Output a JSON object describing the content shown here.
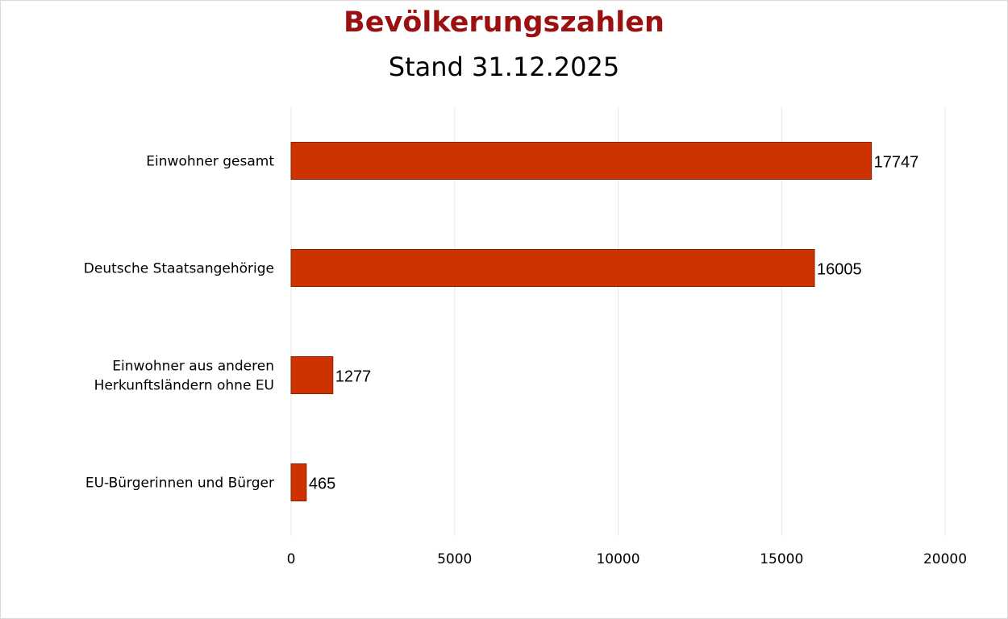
{
  "chart_data": {
    "type": "bar",
    "orientation": "horizontal",
    "title": "Bevölkerungszahlen",
    "subtitle": "Stand 31.12.2025",
    "categories": [
      [
        "Einwohner gesamt"
      ],
      [
        "Deutsche Staatsangehörige"
      ],
      [
        "Einwohner aus anderen",
        "Herkunftsländern ohne EU"
      ],
      [
        "EU-Bürgerinnen und Bürger"
      ]
    ],
    "values": [
      17747,
      16005,
      1277,
      465
    ],
    "data_labels": [
      "17747",
      "16005",
      "1277",
      "465"
    ],
    "xlim": [
      0,
      20000
    ],
    "x_ticks": [
      0,
      5000,
      10000,
      15000,
      20000
    ],
    "x_tick_labels": [
      "0",
      "5000",
      "10000",
      "15000",
      "20000"
    ],
    "grid": "vertical",
    "legend": "none",
    "colors": {
      "bar": "#cc3300",
      "bar_border": "#8a2200",
      "title": "#9b1111",
      "grid": "#e6e6e6"
    }
  }
}
